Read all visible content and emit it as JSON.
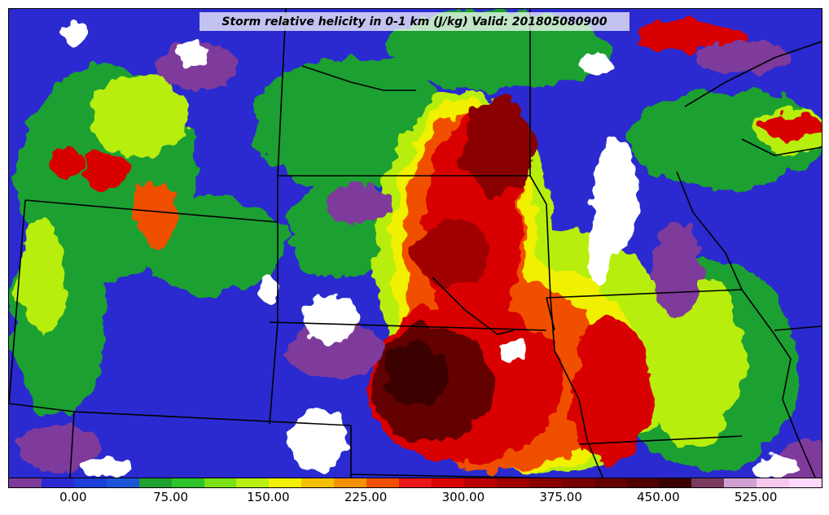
{
  "map": {
    "title": "Storm relative helicity in 0-1 km (J/kg) Valid: 201805080900",
    "background": "#2a2ad0"
  },
  "colorbar": {
    "min": -50,
    "max": 575,
    "step": 25,
    "colors": [
      "#7e3b9c",
      "#2a2ad0",
      "#1b3fd8",
      "#1d55d8",
      "#1fa030",
      "#2cc42a",
      "#79e019",
      "#b8ee10",
      "#f0f000",
      "#f5c000",
      "#f59000",
      "#f05000",
      "#e81818",
      "#d80000",
      "#b80000",
      "#a00000",
      "#8a0000",
      "#780000",
      "#640000",
      "#500000",
      "#3a0000",
      "#7a3a60",
      "#d0a0d0",
      "#f5c8f0",
      "#ffd8ff"
    ],
    "tick_labels": [
      "0.00",
      "75.00",
      "150.00",
      "225.00",
      "300.00",
      "375.00",
      "450.00",
      "525.00"
    ],
    "tick_values": [
      0,
      75,
      150,
      225,
      300,
      375,
      450,
      525
    ]
  }
}
